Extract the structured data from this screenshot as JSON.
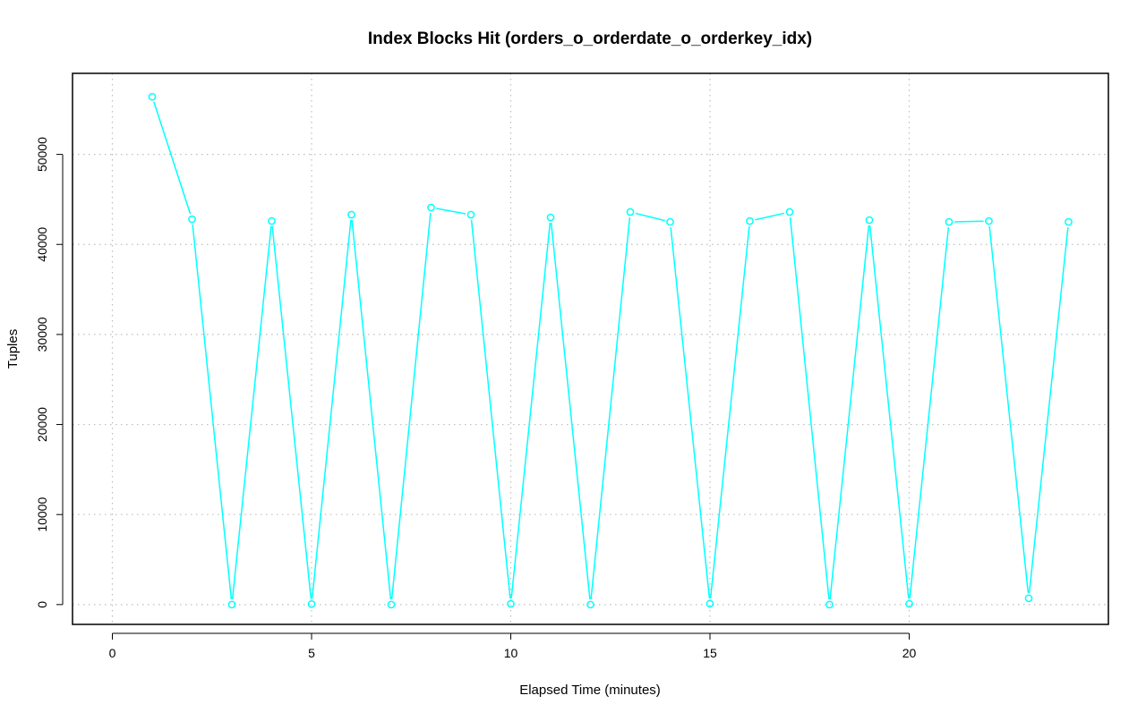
{
  "chart_data": {
    "type": "line",
    "title": "Index Blocks Hit (orders_o_orderdate_o_orderkey_idx)",
    "xlabel": "Elapsed Time (minutes)",
    "ylabel": "Tuples",
    "xlim": [
      -1,
      25
    ],
    "ylim": [
      -2200,
      59000
    ],
    "x_ticks": [
      0,
      5,
      10,
      15,
      20
    ],
    "y_ticks": [
      0,
      10000,
      20000,
      30000,
      40000,
      50000
    ],
    "grid": true,
    "legend": "none",
    "series": [
      {
        "color": "#00ffff",
        "x": [
          1,
          2,
          3,
          4,
          5,
          6,
          7,
          8,
          9,
          10,
          11,
          12,
          13,
          14,
          15,
          16,
          17,
          18,
          19,
          20,
          21,
          22,
          23,
          24
        ],
        "y": [
          56400,
          42800,
          0,
          42600,
          50,
          43300,
          0,
          44100,
          43300,
          80,
          43000,
          0,
          43600,
          42500,
          100,
          42600,
          43600,
          0,
          42700,
          80,
          42500,
          42600,
          700,
          42500
        ]
      }
    ]
  }
}
